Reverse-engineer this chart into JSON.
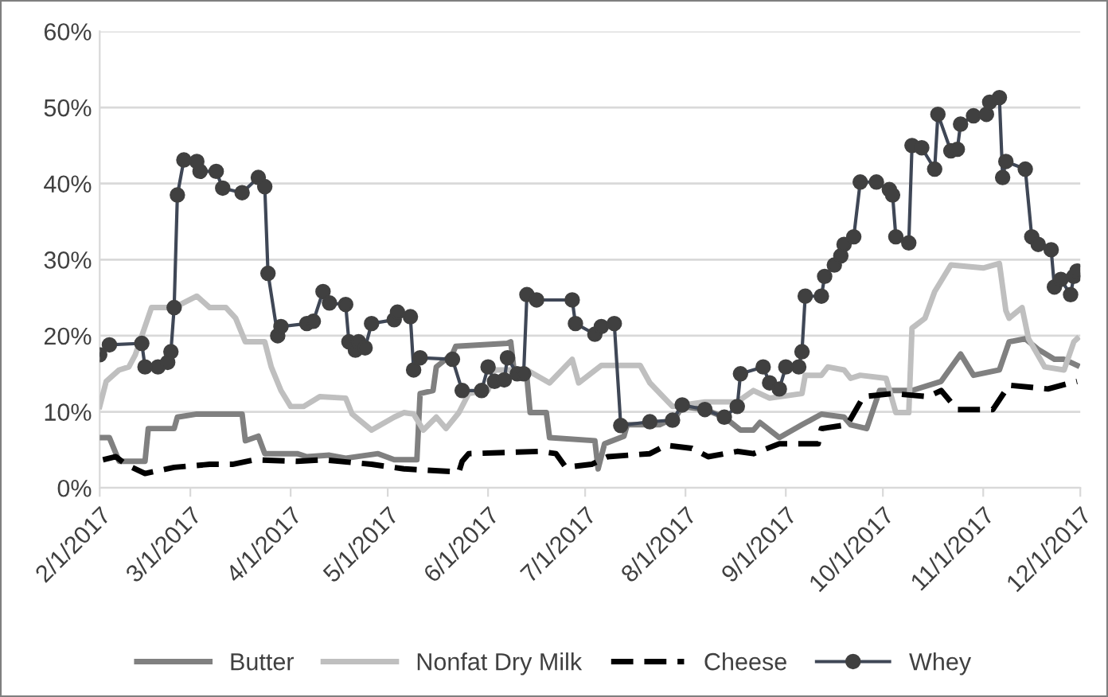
{
  "chart_data": {
    "type": "line",
    "ylim": [
      0,
      60
    ],
    "yticks": [
      {
        "value": 0,
        "label": "0%"
      },
      {
        "value": 10,
        "label": "10%"
      },
      {
        "value": 20,
        "label": "20%"
      },
      {
        "value": 30,
        "label": "30%"
      },
      {
        "value": 40,
        "label": "40%"
      },
      {
        "value": 50,
        "label": "50%"
      },
      {
        "value": 60,
        "label": "60%"
      }
    ],
    "xlim": [
      "2017-02-01",
      "2017-12-01"
    ],
    "xticks": [
      {
        "value": "2017-02-01",
        "label": "2/1/2017"
      },
      {
        "value": "2017-03-01",
        "label": "3/1/2017"
      },
      {
        "value": "2017-04-01",
        "label": "4/1/2017"
      },
      {
        "value": "2017-05-01",
        "label": "5/1/2017"
      },
      {
        "value": "2017-06-01",
        "label": "6/1/2017"
      },
      {
        "value": "2017-07-01",
        "label": "7/1/2017"
      },
      {
        "value": "2017-08-01",
        "label": "8/1/2017"
      },
      {
        "value": "2017-09-01",
        "label": "9/1/2017"
      },
      {
        "value": "2017-10-01",
        "label": "10/1/2017"
      },
      {
        "value": "2017-11-01",
        "label": "11/1/2017"
      },
      {
        "value": "2017-12-01",
        "label": "12/1/2017"
      }
    ],
    "grid": "y",
    "legend": "bottom",
    "series": [
      {
        "name": "Butter",
        "color": "#808080",
        "line_style": "solid",
        "marker": "none",
        "x": [
          "2017-02-01",
          "2017-02-04",
          "2017-02-07",
          "2017-02-15",
          "2017-02-16",
          "2017-02-24",
          "2017-02-25",
          "2017-03-03",
          "2017-03-17",
          "2017-03-18",
          "2017-03-22",
          "2017-03-24",
          "2017-04-03",
          "2017-04-06",
          "2017-04-13",
          "2017-04-18",
          "2017-04-28",
          "2017-05-03",
          "2017-05-10",
          "2017-05-11",
          "2017-05-15",
          "2017-05-16",
          "2017-05-21",
          "2017-05-22",
          "2017-06-07",
          "2017-06-08",
          "2017-06-09",
          "2017-06-13",
          "2017-06-14",
          "2017-06-19",
          "2017-06-20",
          "2017-07-04",
          "2017-07-05",
          "2017-07-07",
          "2017-07-13",
          "2017-07-14",
          "2017-07-24",
          "2017-07-29",
          "2017-07-31",
          "2017-08-07",
          "2017-08-13",
          "2017-08-18",
          "2017-08-22",
          "2017-08-24",
          "2017-08-30",
          "2017-09-06",
          "2017-09-12",
          "2017-09-19",
          "2017-09-21",
          "2017-09-26",
          "2017-09-30",
          "2017-10-10",
          "2017-10-19",
          "2017-10-25",
          "2017-10-29",
          "2017-11-06",
          "2017-11-09",
          "2017-11-14",
          "2017-11-18",
          "2017-11-23",
          "2017-11-26",
          "2017-11-30"
        ],
        "values": [
          6.6,
          6.6,
          3.5,
          3.5,
          7.8,
          7.8,
          9.3,
          9.7,
          9.7,
          6.2,
          6.8,
          4.5,
          4.5,
          4.1,
          4.3,
          3.9,
          4.5,
          3.7,
          3.7,
          12.4,
          12.8,
          15.9,
          17.6,
          18.6,
          19.0,
          19.2,
          15.5,
          14.5,
          9.9,
          9.9,
          6.6,
          6.2,
          2.5,
          5.8,
          6.8,
          8.3,
          8.3,
          9.3,
          10.7,
          10.3,
          9.3,
          7.6,
          7.6,
          8.6,
          6.6,
          8.3,
          9.7,
          9.3,
          8.3,
          7.8,
          12.8,
          12.8,
          14.0,
          17.6,
          14.8,
          15.5,
          19.2,
          19.6,
          18.2,
          16.9,
          16.9,
          16.1
        ]
      },
      {
        "name": "Nonfat Dry Milk",
        "color": "#bfbfbf",
        "line_style": "solid",
        "marker": "none",
        "x": [
          "2017-02-01",
          "2017-02-03",
          "2017-02-07",
          "2017-02-10",
          "2017-02-12",
          "2017-02-17",
          "2017-02-24",
          "2017-03-03",
          "2017-03-07",
          "2017-03-12",
          "2017-03-15",
          "2017-03-18",
          "2017-03-24",
          "2017-03-26",
          "2017-03-29",
          "2017-04-01",
          "2017-04-05",
          "2017-04-10",
          "2017-04-18",
          "2017-04-20",
          "2017-04-26",
          "2017-05-03",
          "2017-05-06",
          "2017-05-09",
          "2017-05-12",
          "2017-05-16",
          "2017-05-19",
          "2017-05-23",
          "2017-05-26",
          "2017-06-01",
          "2017-06-03",
          "2017-06-13",
          "2017-06-20",
          "2017-06-27",
          "2017-06-29",
          "2017-07-06",
          "2017-07-18",
          "2017-07-21",
          "2017-07-28",
          "2017-08-07",
          "2017-08-17",
          "2017-08-22",
          "2017-08-27",
          "2017-09-06",
          "2017-09-07",
          "2017-09-12",
          "2017-09-14",
          "2017-09-19",
          "2017-09-21",
          "2017-09-24",
          "2017-10-02",
          "2017-10-05",
          "2017-10-09",
          "2017-10-10",
          "2017-10-14",
          "2017-10-17",
          "2017-10-22",
          "2017-11-01",
          "2017-11-06",
          "2017-11-08",
          "2017-11-09",
          "2017-11-13",
          "2017-11-15",
          "2017-11-20",
          "2017-11-26",
          "2017-11-29",
          "2017-11-30"
        ],
        "values": [
          10.7,
          14.0,
          15.5,
          15.9,
          17.5,
          23.7,
          23.7,
          25.2,
          23.7,
          23.7,
          22.3,
          19.2,
          19.2,
          15.9,
          12.8,
          10.7,
          10.7,
          12.0,
          11.8,
          9.7,
          7.6,
          9.3,
          9.9,
          9.7,
          7.6,
          9.3,
          7.8,
          9.9,
          12.4,
          12.8,
          15.5,
          15.5,
          13.8,
          16.9,
          13.8,
          16.1,
          16.1,
          13.8,
          10.7,
          11.3,
          11.3,
          12.8,
          11.8,
          12.4,
          14.8,
          14.8,
          15.9,
          15.5,
          14.4,
          14.8,
          14.4,
          9.9,
          9.9,
          21.0,
          22.3,
          25.8,
          29.3,
          28.9,
          29.5,
          23.3,
          22.3,
          23.7,
          19.6,
          15.9,
          15.5,
          19.2,
          19.6
        ]
      },
      {
        "name": "Cheese",
        "color": "#000000",
        "line_style": "dashed",
        "marker": "none",
        "x": [
          "2017-02-02",
          "2017-02-06",
          "2017-02-09",
          "2017-02-15",
          "2017-02-24",
          "2017-03-07",
          "2017-03-14",
          "2017-03-21",
          "2017-04-03",
          "2017-04-11",
          "2017-04-26",
          "2017-05-06",
          "2017-05-23",
          "2017-05-24",
          "2017-05-26",
          "2017-06-17",
          "2017-06-22",
          "2017-06-25",
          "2017-07-03",
          "2017-07-08",
          "2017-07-21",
          "2017-07-26",
          "2017-08-03",
          "2017-08-08",
          "2017-08-17",
          "2017-08-22",
          "2017-08-30",
          "2017-09-11",
          "2017-09-12",
          "2017-09-20",
          "2017-09-25",
          "2017-10-04",
          "2017-10-15",
          "2017-10-19",
          "2017-10-24",
          "2017-11-04",
          "2017-11-09",
          "2017-11-21",
          "2017-11-28",
          "2017-11-30"
        ],
        "values": [
          3.7,
          4.1,
          3.1,
          1.9,
          2.7,
          3.1,
          3.1,
          3.7,
          3.5,
          3.7,
          3.1,
          2.5,
          2.1,
          3.5,
          4.5,
          4.8,
          4.5,
          2.7,
          3.1,
          4.1,
          4.5,
          5.6,
          5.2,
          4.1,
          4.8,
          4.5,
          5.8,
          5.8,
          7.8,
          8.3,
          12.0,
          12.4,
          12.0,
          12.8,
          10.3,
          10.3,
          13.5,
          13.0,
          13.8,
          14.0
        ]
      },
      {
        "name": "Whey",
        "color": "#3f4756",
        "line_style": "solid",
        "marker": "circle",
        "x": [
          "2017-02-01",
          "2017-02-04",
          "2017-02-14",
          "2017-02-15",
          "2017-02-19",
          "2017-02-22",
          "2017-02-23",
          "2017-02-24",
          "2017-02-25",
          "2017-02-27",
          "2017-03-03",
          "2017-03-04",
          "2017-03-09",
          "2017-03-11",
          "2017-03-17",
          "2017-03-22",
          "2017-03-24",
          "2017-03-25",
          "2017-03-28",
          "2017-03-29",
          "2017-04-06",
          "2017-04-08",
          "2017-04-11",
          "2017-04-13",
          "2017-04-18",
          "2017-04-19",
          "2017-04-21",
          "2017-04-22",
          "2017-04-24",
          "2017-04-26",
          "2017-05-03",
          "2017-05-04",
          "2017-05-08",
          "2017-05-09",
          "2017-05-11",
          "2017-05-21",
          "2017-05-24",
          "2017-05-30",
          "2017-06-01",
          "2017-06-03",
          "2017-06-06",
          "2017-06-07",
          "2017-06-10",
          "2017-06-12",
          "2017-06-13",
          "2017-06-16",
          "2017-06-27",
          "2017-06-28",
          "2017-07-04",
          "2017-07-06",
          "2017-07-10",
          "2017-07-12",
          "2017-07-21",
          "2017-07-28",
          "2017-07-31",
          "2017-08-07",
          "2017-08-13",
          "2017-08-17",
          "2017-08-18",
          "2017-08-25",
          "2017-08-27",
          "2017-08-30",
          "2017-09-01",
          "2017-09-05",
          "2017-09-06",
          "2017-09-07",
          "2017-09-12",
          "2017-09-13",
          "2017-09-16",
          "2017-09-18",
          "2017-09-19",
          "2017-09-22",
          "2017-09-24",
          "2017-09-29",
          "2017-10-03",
          "2017-10-04",
          "2017-10-05",
          "2017-10-09",
          "2017-10-10",
          "2017-10-13",
          "2017-10-17",
          "2017-10-18",
          "2017-10-22",
          "2017-10-24",
          "2017-10-25",
          "2017-10-29",
          "2017-11-02",
          "2017-11-03",
          "2017-11-06",
          "2017-11-07",
          "2017-11-08",
          "2017-11-14",
          "2017-11-16",
          "2017-11-18",
          "2017-11-22",
          "2017-11-23",
          "2017-11-25",
          "2017-11-28",
          "2017-11-29",
          "2017-11-30"
        ],
        "values": [
          17.5,
          18.8,
          19.0,
          15.9,
          15.9,
          16.5,
          17.9,
          23.7,
          38.5,
          43.1,
          42.9,
          41.6,
          41.6,
          39.4,
          38.8,
          40.8,
          39.6,
          28.2,
          20.0,
          21.2,
          21.6,
          21.9,
          25.8,
          24.3,
          24.1,
          19.2,
          18.1,
          19.2,
          18.4,
          21.6,
          22.1,
          23.1,
          22.5,
          15.5,
          17.1,
          16.9,
          12.8,
          12.8,
          15.9,
          14.0,
          14.2,
          17.1,
          15.0,
          15.0,
          25.4,
          24.7,
          24.7,
          21.6,
          20.2,
          21.2,
          21.6,
          8.2,
          8.7,
          8.9,
          10.9,
          10.3,
          9.3,
          10.7,
          15.0,
          15.9,
          13.8,
          13.0,
          15.9,
          15.9,
          17.9,
          25.2,
          25.2,
          27.8,
          29.3,
          30.5,
          32.0,
          33.0,
          40.2,
          40.2,
          39.2,
          38.5,
          33.0,
          32.2,
          45.0,
          44.7,
          41.9,
          49.1,
          44.3,
          44.5,
          47.8,
          48.9,
          49.1,
          50.7,
          51.3,
          40.8,
          42.9,
          41.9,
          33.0,
          32.0,
          31.3,
          26.4,
          27.4,
          25.4,
          27.8,
          28.5
        ]
      }
    ]
  }
}
